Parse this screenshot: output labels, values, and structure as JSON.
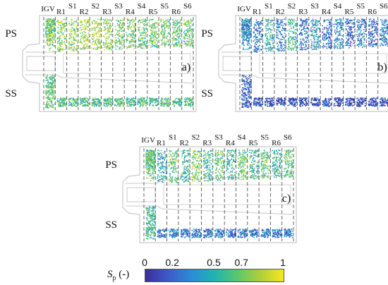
{
  "panels": [
    {
      "id": "a",
      "panel_label": "a)",
      "ps_label": "PS",
      "ss_label": "SS",
      "colormap_bias": 0.78,
      "rows": [
        {
          "name": "IGV",
          "label": "IGV",
          "ps_mean": 0.7,
          "ss_mean": 0.65
        },
        {
          "name": "R1",
          "label": "R1",
          "ps_mean": 0.75,
          "ss_mean": 0.6
        },
        {
          "name": "S1",
          "label": "S1",
          "ps_mean": 0.8,
          "ss_mean": 0.65
        },
        {
          "name": "R2",
          "label": "R2",
          "ps_mean": 0.8,
          "ss_mean": 0.6
        },
        {
          "name": "S2",
          "label": "S2",
          "ps_mean": 0.82,
          "ss_mean": 0.62
        },
        {
          "name": "R3",
          "label": "R3",
          "ps_mean": 0.75,
          "ss_mean": 0.6
        },
        {
          "name": "S3",
          "label": "S3",
          "ps_mean": 0.72,
          "ss_mean": 0.62
        },
        {
          "name": "R4",
          "label": "R4",
          "ps_mean": 0.7,
          "ss_mean": 0.6
        },
        {
          "name": "S4",
          "label": "S4",
          "ps_mean": 0.7,
          "ss_mean": 0.62
        },
        {
          "name": "R5",
          "label": "R5",
          "ps_mean": 0.68,
          "ss_mean": 0.6
        },
        {
          "name": "S5",
          "label": "S5",
          "ps_mean": 0.68,
          "ss_mean": 0.62
        },
        {
          "name": "R6",
          "label": "R6",
          "ps_mean": 0.66,
          "ss_mean": 0.6
        },
        {
          "name": "S6",
          "label": "S6",
          "ps_mean": 0.66,
          "ss_mean": 0.62
        }
      ]
    },
    {
      "id": "b",
      "panel_label": "b)",
      "ps_label": "PS",
      "ss_label": "SS",
      "colormap_bias": 0.3,
      "rows": [
        {
          "name": "IGV",
          "label": "IGV",
          "ps_mean": 0.35,
          "ss_mean": 0.2
        },
        {
          "name": "R1",
          "label": "R1",
          "ps_mean": 0.25,
          "ss_mean": 0.1
        },
        {
          "name": "S1",
          "label": "S1",
          "ps_mean": 0.5,
          "ss_mean": 0.12
        },
        {
          "name": "R2",
          "label": "R2",
          "ps_mean": 0.3,
          "ss_mean": 0.1
        },
        {
          "name": "S2",
          "label": "S2",
          "ps_mean": 0.55,
          "ss_mean": 0.12
        },
        {
          "name": "R3",
          "label": "R3",
          "ps_mean": 0.25,
          "ss_mean": 0.1
        },
        {
          "name": "S3",
          "label": "S3",
          "ps_mean": 0.4,
          "ss_mean": 0.1
        },
        {
          "name": "R4",
          "label": "R4",
          "ps_mean": 0.22,
          "ss_mean": 0.1
        },
        {
          "name": "S4",
          "label": "S4",
          "ps_mean": 0.35,
          "ss_mean": 0.1
        },
        {
          "name": "R5",
          "label": "R5",
          "ps_mean": 0.2,
          "ss_mean": 0.1
        },
        {
          "name": "S5",
          "label": "S5",
          "ps_mean": 0.3,
          "ss_mean": 0.1
        },
        {
          "name": "R6",
          "label": "R6",
          "ps_mean": 0.2,
          "ss_mean": 0.1
        },
        {
          "name": "S6",
          "label": "S6",
          "ps_mean": 0.3,
          "ss_mean": 0.1
        }
      ]
    },
    {
      "id": "c",
      "panel_label": "c)",
      "ps_label": "PS",
      "ss_label": "SS",
      "colormap_bias": 0.55,
      "rows": [
        {
          "name": "IGV",
          "label": "IGV",
          "ps_mean": 0.65,
          "ss_mean": 0.55
        },
        {
          "name": "R1",
          "label": "R1",
          "ps_mean": 0.45,
          "ss_mean": 0.25
        },
        {
          "name": "S1",
          "label": "S1",
          "ps_mean": 0.7,
          "ss_mean": 0.3
        },
        {
          "name": "R2",
          "label": "R2",
          "ps_mean": 0.55,
          "ss_mean": 0.25
        },
        {
          "name": "S2",
          "label": "S2",
          "ps_mean": 0.75,
          "ss_mean": 0.3
        },
        {
          "name": "R3",
          "label": "R3",
          "ps_mean": 0.55,
          "ss_mean": 0.25
        },
        {
          "name": "S3",
          "label": "S3",
          "ps_mean": 0.65,
          "ss_mean": 0.28
        },
        {
          "name": "R4",
          "label": "R4",
          "ps_mean": 0.55,
          "ss_mean": 0.25
        },
        {
          "name": "S4",
          "label": "S4",
          "ps_mean": 0.65,
          "ss_mean": 0.28
        },
        {
          "name": "R5",
          "label": "R5",
          "ps_mean": 0.55,
          "ss_mean": 0.25
        },
        {
          "name": "S5",
          "label": "S5",
          "ps_mean": 0.65,
          "ss_mean": 0.28
        },
        {
          "name": "R6",
          "label": "R6",
          "ps_mean": 0.55,
          "ss_mean": 0.25
        },
        {
          "name": "S6",
          "label": "S6",
          "ps_mean": 0.65,
          "ss_mean": 0.28
        }
      ]
    }
  ],
  "colorbar": {
    "label_symbol": "S",
    "label_subscript": "p",
    "label_unit": " (-)",
    "ticks": [
      {
        "label": "0",
        "value": 0
      },
      {
        "label": "0.2",
        "value": 0.2
      },
      {
        "label": "0.5",
        "value": 0.5
      },
      {
        "label": "0.7",
        "value": 0.7
      },
      {
        "label": "1",
        "value": 1
      }
    ],
    "colormap": "viridis",
    "colors": [
      "#3b2f9a",
      "#3c5bc8",
      "#2c8cd6",
      "#1fb4b0",
      "#5cc66e",
      "#b0cf3a",
      "#f7e81f"
    ],
    "range": [
      0,
      1
    ]
  },
  "palette": {
    "outline": "#c8c8c8",
    "dash": "#555555",
    "text": "#111111"
  }
}
